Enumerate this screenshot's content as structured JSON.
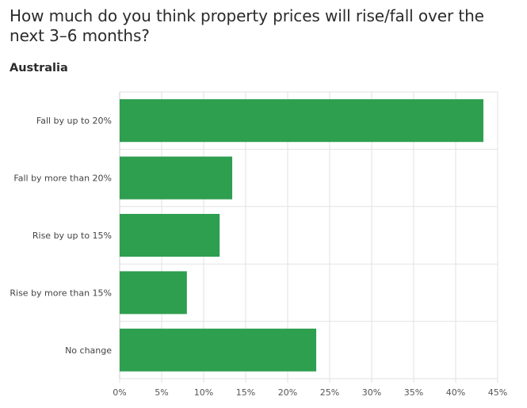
{
  "title": "How much do you think property prices will rise/fall over the next 3–6 months?",
  "subtitle": "Australia",
  "colors": {
    "bar": "#2e9e4f",
    "grid": "#e2e2e2",
    "axis": "#cccccc"
  },
  "chart_data": {
    "type": "bar",
    "orientation": "horizontal",
    "title": "How much do you think property prices will rise/fall over the next 3–6 months?",
    "subtitle": "Australia",
    "categories": [
      "Fall by up to 20%",
      "Fall by more than 20%",
      "Rise by up to 15%",
      "Rise by more than 15%",
      "No change"
    ],
    "values": [
      43.3,
      13.4,
      11.9,
      8.0,
      23.4
    ],
    "xlim": [
      0,
      45
    ],
    "ticks": [
      0,
      5,
      10,
      15,
      20,
      25,
      30,
      35,
      40,
      45
    ],
    "tick_labels": [
      "0%",
      "5%",
      "10%",
      "15%",
      "20%",
      "25%",
      "30%",
      "35%",
      "40%",
      "45%"
    ],
    "grid": true,
    "legend": "none"
  }
}
